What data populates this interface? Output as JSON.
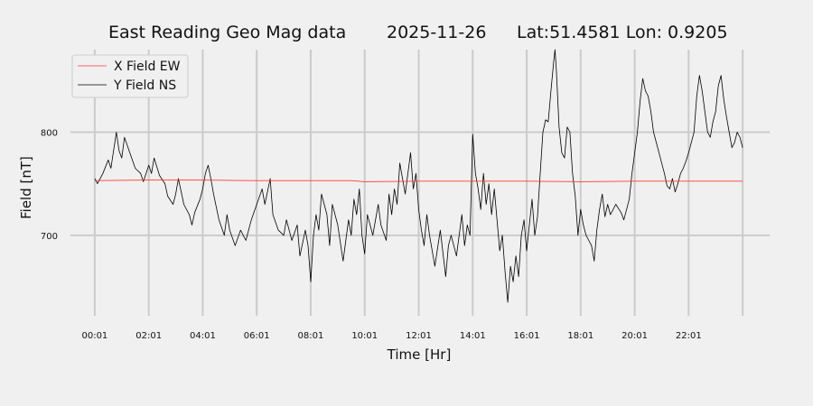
{
  "chart_data": {
    "type": "line",
    "title": {
      "name": "East Reading Geo Mag data",
      "date": "2025-11-26",
      "location": "Lat:51.4581  Lon: 0.9205"
    },
    "xlabel": "Time  [Hr]",
    "ylabel": "Field  [nT]",
    "x_unit": "hours",
    "xlim": [
      -0.9,
      25.0
    ],
    "ylim": [
      622,
      880
    ],
    "x_tick_values": [
      0,
      2,
      4,
      6,
      8,
      10,
      12,
      14,
      16,
      18,
      20,
      22,
      24
    ],
    "x_tick_labels": [
      "00:01",
      "02:01",
      "04:01",
      "06:01",
      "08:01",
      "10:01",
      "12:01",
      "14:01",
      "16:01",
      "18:01",
      "20:01",
      "22:01",
      ""
    ],
    "y_ticks": [
      700,
      800
    ],
    "grid": true,
    "legend_position": "top-left",
    "series": [
      {
        "name": "X Field EW",
        "color": "#ff3b30",
        "points": [
          [
            0,
            753
          ],
          [
            2,
            753.5
          ],
          [
            4,
            753.5
          ],
          [
            6,
            753
          ],
          [
            8,
            753
          ],
          [
            9.5,
            753
          ],
          [
            10,
            752
          ],
          [
            12,
            752.5
          ],
          [
            14,
            752.5
          ],
          [
            16,
            752.5
          ],
          [
            18,
            752
          ],
          [
            20,
            752.5
          ],
          [
            22,
            752.5
          ],
          [
            24,
            752.5
          ]
        ]
      },
      {
        "name": "Y Field NS",
        "color": "#000000",
        "points": [
          [
            0,
            755
          ],
          [
            0.1,
            750
          ],
          [
            0.3,
            760
          ],
          [
            0.5,
            773
          ],
          [
            0.6,
            765
          ],
          [
            0.8,
            800
          ],
          [
            0.9,
            782
          ],
          [
            1.0,
            775
          ],
          [
            1.1,
            795
          ],
          [
            1.3,
            780
          ],
          [
            1.5,
            765
          ],
          [
            1.7,
            760
          ],
          [
            1.8,
            752
          ],
          [
            2.0,
            768
          ],
          [
            2.1,
            760
          ],
          [
            2.2,
            775
          ],
          [
            2.4,
            758
          ],
          [
            2.6,
            750
          ],
          [
            2.7,
            738
          ],
          [
            2.9,
            730
          ],
          [
            3.0,
            740
          ],
          [
            3.1,
            755
          ],
          [
            3.3,
            730
          ],
          [
            3.5,
            720
          ],
          [
            3.6,
            710
          ],
          [
            3.7,
            722
          ],
          [
            3.9,
            735
          ],
          [
            4.0,
            745
          ],
          [
            4.1,
            760
          ],
          [
            4.2,
            768
          ],
          [
            4.3,
            755
          ],
          [
            4.4,
            740
          ],
          [
            4.6,
            715
          ],
          [
            4.8,
            700
          ],
          [
            4.9,
            720
          ],
          [
            5.0,
            705
          ],
          [
            5.2,
            690
          ],
          [
            5.4,
            705
          ],
          [
            5.6,
            695
          ],
          [
            5.8,
            715
          ],
          [
            6.0,
            730
          ],
          [
            6.2,
            745
          ],
          [
            6.3,
            730
          ],
          [
            6.5,
            755
          ],
          [
            6.6,
            720
          ],
          [
            6.8,
            705
          ],
          [
            7.0,
            700
          ],
          [
            7.1,
            715
          ],
          [
            7.3,
            695
          ],
          [
            7.5,
            710
          ],
          [
            7.6,
            680
          ],
          [
            7.8,
            705
          ],
          [
            7.9,
            690
          ],
          [
            8.0,
            655
          ],
          [
            8.1,
            700
          ],
          [
            8.2,
            720
          ],
          [
            8.3,
            705
          ],
          [
            8.4,
            740
          ],
          [
            8.6,
            720
          ],
          [
            8.7,
            690
          ],
          [
            8.8,
            730
          ],
          [
            9.0,
            710
          ],
          [
            9.2,
            675
          ],
          [
            9.4,
            715
          ],
          [
            9.5,
            700
          ],
          [
            9.6,
            735
          ],
          [
            9.7,
            720
          ],
          [
            9.8,
            745
          ],
          [
            9.9,
            700
          ],
          [
            10.0,
            682
          ],
          [
            10.1,
            720
          ],
          [
            10.3,
            700
          ],
          [
            10.5,
            730
          ],
          [
            10.6,
            710
          ],
          [
            10.8,
            695
          ],
          [
            10.9,
            740
          ],
          [
            11.0,
            720
          ],
          [
            11.1,
            745
          ],
          [
            11.2,
            730
          ],
          [
            11.3,
            770
          ],
          [
            11.5,
            740
          ],
          [
            11.7,
            780
          ],
          [
            11.8,
            745
          ],
          [
            11.9,
            760
          ],
          [
            12.0,
            725
          ],
          [
            12.1,
            705
          ],
          [
            12.2,
            690
          ],
          [
            12.3,
            720
          ],
          [
            12.4,
            700
          ],
          [
            12.6,
            670
          ],
          [
            12.8,
            705
          ],
          [
            13.0,
            660
          ],
          [
            13.1,
            690
          ],
          [
            13.2,
            700
          ],
          [
            13.4,
            680
          ],
          [
            13.6,
            720
          ],
          [
            13.7,
            690
          ],
          [
            13.8,
            710
          ],
          [
            13.9,
            700
          ],
          [
            14.0,
            798
          ],
          [
            14.1,
            760
          ],
          [
            14.2,
            745
          ],
          [
            14.3,
            725
          ],
          [
            14.4,
            760
          ],
          [
            14.5,
            730
          ],
          [
            14.6,
            750
          ],
          [
            14.7,
            720
          ],
          [
            14.8,
            745
          ],
          [
            14.9,
            715
          ],
          [
            15.0,
            685
          ],
          [
            15.1,
            700
          ],
          [
            15.2,
            665
          ],
          [
            15.3,
            635
          ],
          [
            15.4,
            670
          ],
          [
            15.5,
            655
          ],
          [
            15.6,
            680
          ],
          [
            15.7,
            660
          ],
          [
            15.8,
            700
          ],
          [
            15.9,
            715
          ],
          [
            16.0,
            685
          ],
          [
            16.1,
            710
          ],
          [
            16.2,
            735
          ],
          [
            16.3,
            700
          ],
          [
            16.4,
            718
          ],
          [
            16.5,
            760
          ],
          [
            16.6,
            800
          ],
          [
            16.7,
            812
          ],
          [
            16.8,
            810
          ],
          [
            16.9,
            840
          ],
          [
            17.0,
            868
          ],
          [
            17.05,
            880
          ],
          [
            17.1,
            860
          ],
          [
            17.2,
            805
          ],
          [
            17.3,
            780
          ],
          [
            17.4,
            775
          ],
          [
            17.5,
            805
          ],
          [
            17.6,
            800
          ],
          [
            17.7,
            760
          ],
          [
            17.8,
            738
          ],
          [
            17.9,
            700
          ],
          [
            18.0,
            725
          ],
          [
            18.1,
            710
          ],
          [
            18.2,
            700
          ],
          [
            18.3,
            695
          ],
          [
            18.4,
            690
          ],
          [
            18.5,
            675
          ],
          [
            18.6,
            705
          ],
          [
            18.7,
            725
          ],
          [
            18.8,
            740
          ],
          [
            18.9,
            718
          ],
          [
            19.0,
            730
          ],
          [
            19.1,
            720
          ],
          [
            19.3,
            730
          ],
          [
            19.5,
            722
          ],
          [
            19.6,
            715
          ],
          [
            19.8,
            735
          ],
          [
            19.9,
            760
          ],
          [
            20.0,
            780
          ],
          [
            20.1,
            800
          ],
          [
            20.2,
            830
          ],
          [
            20.3,
            852
          ],
          [
            20.4,
            840
          ],
          [
            20.5,
            835
          ],
          [
            20.6,
            820
          ],
          [
            20.7,
            800
          ],
          [
            20.8,
            790
          ],
          [
            20.9,
            780
          ],
          [
            21.0,
            770
          ],
          [
            21.1,
            760
          ],
          [
            21.2,
            748
          ],
          [
            21.3,
            745
          ],
          [
            21.4,
            755
          ],
          [
            21.5,
            742
          ],
          [
            21.6,
            750
          ],
          [
            21.7,
            760
          ],
          [
            21.8,
            765
          ],
          [
            21.9,
            772
          ],
          [
            22.0,
            780
          ],
          [
            22.1,
            790
          ],
          [
            22.2,
            800
          ],
          [
            22.3,
            835
          ],
          [
            22.4,
            855
          ],
          [
            22.5,
            840
          ],
          [
            22.6,
            820
          ],
          [
            22.7,
            800
          ],
          [
            22.8,
            795
          ],
          [
            22.9,
            810
          ],
          [
            23.0,
            820
          ],
          [
            23.1,
            845
          ],
          [
            23.2,
            855
          ],
          [
            23.3,
            832
          ],
          [
            23.4,
            815
          ],
          [
            23.5,
            800
          ],
          [
            23.6,
            785
          ],
          [
            23.7,
            790
          ],
          [
            23.8,
            800
          ],
          [
            23.9,
            795
          ],
          [
            24.0,
            785
          ]
        ]
      }
    ]
  }
}
